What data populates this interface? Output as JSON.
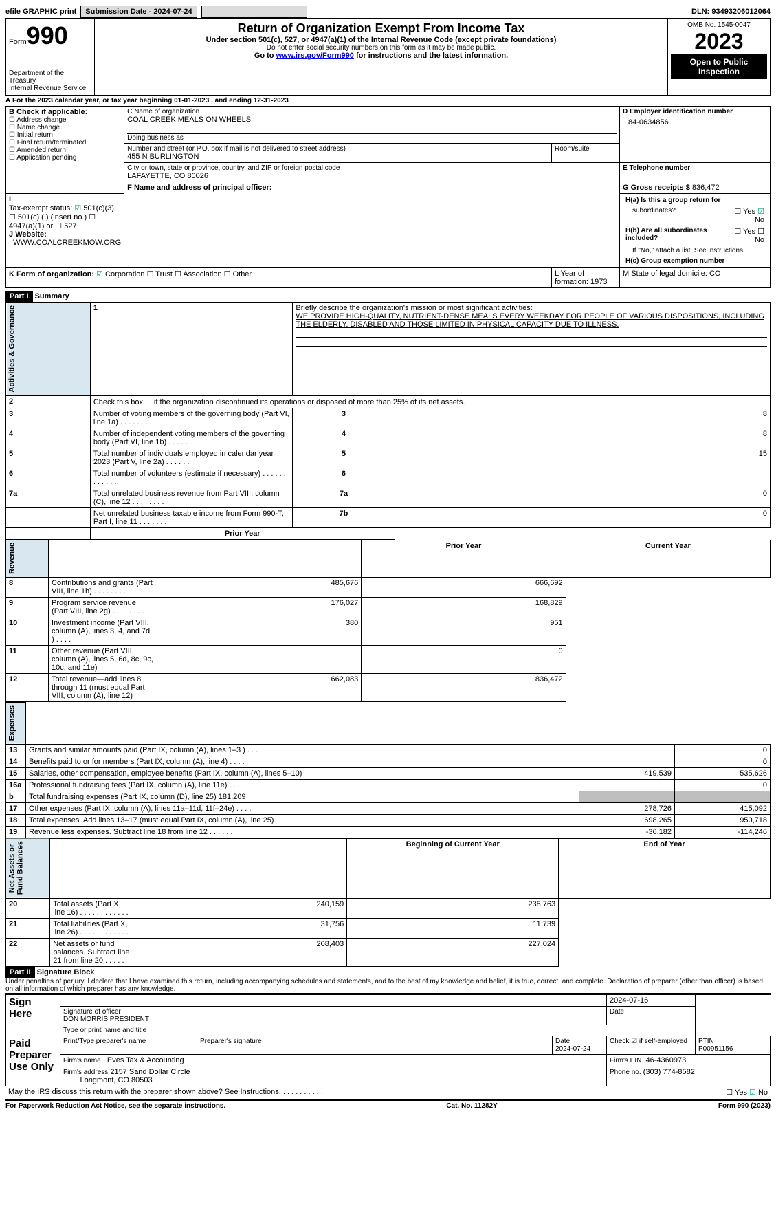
{
  "topbar": {
    "efile": "efile GRAPHIC print",
    "submission": "Submission Date - 2024-07-24",
    "dln": "DLN: 93493206012064"
  },
  "header": {
    "form": "Form",
    "formno": "990",
    "title": "Return of Organization Exempt From Income Tax",
    "subtitle": "Under section 501(c), 527, or 4947(a)(1) of the Internal Revenue Code (except private foundations)",
    "nossn": "Do not enter social security numbers on this form as it may be made public.",
    "goto": "Go to ",
    "gotolink": "www.irs.gov/Form990",
    "goto2": " for instructions and the latest information.",
    "dept": "Department of the Treasury",
    "irs": "Internal Revenue Service",
    "omb": "OMB No. 1545-0047",
    "year": "2023",
    "open": "Open to Public",
    "insp": "Inspection"
  },
  "A": {
    "line": "For the 2023 calendar year, or tax year beginning 01-01-2023    , and ending 12-31-2023"
  },
  "B": {
    "label": "B Check if applicable:",
    "items": [
      "Address change",
      "Name change",
      "Initial return",
      "Final return/terminated",
      "Amended return",
      "Application pending"
    ]
  },
  "C": {
    "name_label": "C Name of organization",
    "name": "COAL CREEK MEALS ON WHEELS",
    "dba_label": "Doing business as",
    "dba": "",
    "addr_label": "Number and street (or P.O. box if mail is not delivered to street address)",
    "room_label": "Room/suite",
    "addr": "455 N BURLINGTON",
    "city_label": "City or town, state or province, country, and ZIP or foreign postal code",
    "city": "LAFAYETTE, CO  80026"
  },
  "D": {
    "label": "D Employer identification number",
    "ein": "84-0634856"
  },
  "E": {
    "label": "E Telephone number",
    "val": ""
  },
  "G": {
    "label": "G Gross receipts $",
    "val": "836,472"
  },
  "F": {
    "label": "F  Name and address of principal officer:",
    "val": ""
  },
  "H": {
    "a": "H(a)  Is this a group return for",
    "a2": "subordinates?",
    "yes": "Yes",
    "no": "No",
    "b": "H(b)  Are all subordinates included?",
    "note": "If \"No,\" attach a list. See instructions.",
    "c": "H(c)  Group exemption number"
  },
  "I": {
    "label": "Tax-exempt status:",
    "opts": [
      "501(c)(3)",
      "501(c) (  ) (insert no.)",
      "4947(a)(1) or",
      "527"
    ]
  },
  "J": {
    "label": "Website:",
    "val": "WWW.COALCREEKMOW.ORG"
  },
  "K": {
    "label": "K Form of organization:",
    "opts": [
      "Corporation",
      "Trust",
      "Association",
      "Other"
    ]
  },
  "L": {
    "label": "L Year of formation: 1973"
  },
  "M": {
    "label": "M State of legal domicile: CO"
  },
  "partI": {
    "part": "Part I",
    "title": "Summary"
  },
  "mission": {
    "num": "1",
    "label": "Briefly describe the organization's mission or most significant activities:",
    "text": "WE PROVIDE HIGH-QUALITY, NUTRIENT-DENSE MEALS EVERY WEEKDAY FOR PEOPLE OF VARIOUS DISPOSITIONS, INCLUDING THE ELDERLY, DISABLED AND THOSE LIMITED IN PHYSICAL CAPACITY DUE TO ILLNESS."
  },
  "govLines": [
    {
      "n": "2",
      "t": "Check this box ☐ if the organization discontinued its operations or disposed of more than 25% of its net assets.",
      "b": "",
      "v": ""
    },
    {
      "n": "3",
      "t": "Number of voting members of the governing body (Part VI, line 1a)   .    .    .    .    .    .    .    .    .",
      "b": "3",
      "v": "8"
    },
    {
      "n": "4",
      "t": "Number of independent voting members of the governing body (Part VI, line 1b)   .    .    .    .    .",
      "b": "4",
      "v": "8"
    },
    {
      "n": "5",
      "t": "Total number of individuals employed in calendar year 2023 (Part V, line 2a)   .    .    .    .    .    .",
      "b": "5",
      "v": "15"
    },
    {
      "n": "6",
      "t": "Total number of volunteers (estimate if necessary)    .    .    .    .    .    .    .    .    .    .    .    .",
      "b": "6",
      "v": ""
    },
    {
      "n": "7a",
      "t": "Total unrelated business revenue from Part VIII, column (C), line 12   .    .    .    .    .    .    .    .",
      "b": "7a",
      "v": "0"
    },
    {
      "n": "",
      "t": "Net unrelated business taxable income from Form 990-T, Part I, line 11   .    .    .    .    .    .    .",
      "b": "7b",
      "v": "0"
    }
  ],
  "col": {
    "py": "Prior Year",
    "cy": "Current Year",
    "beg": "Beginning of Current Year",
    "end": "End of Year"
  },
  "revenue": [
    {
      "n": "8",
      "t": "Contributions and grants (Part VIII, line 1h)   .    .    .    .    .    .    .    .",
      "p": "485,676",
      "c": "666,692"
    },
    {
      "n": "9",
      "t": "Program service revenue (Part VIII, line 2g)   .    .    .    .    .    .    .    .",
      "p": "176,027",
      "c": "168,829"
    },
    {
      "n": "10",
      "t": "Investment income (Part VIII, column (A), lines 3, 4, and 7d )   .    .    .    .",
      "p": "380",
      "c": "951"
    },
    {
      "n": "11",
      "t": "Other revenue (Part VIII, column (A), lines 5, 6d, 8c, 9c, 10c, and 11e)",
      "p": "",
      "c": "0"
    },
    {
      "n": "12",
      "t": "Total revenue—add lines 8 through 11 (must equal Part VIII, column (A), line 12)",
      "p": "662,083",
      "c": "836,472"
    }
  ],
  "expenses": [
    {
      "n": "13",
      "t": "Grants and similar amounts paid (Part IX, column (A), lines 1–3 )  .    .    .",
      "p": "",
      "c": "0"
    },
    {
      "n": "14",
      "t": "Benefits paid to or for members (Part IX, column (A), line 4)   .    .    .    .",
      "p": "",
      "c": "0"
    },
    {
      "n": "15",
      "t": "Salaries, other compensation, employee benefits (Part IX, column (A), lines 5–10)",
      "p": "419,539",
      "c": "535,626"
    },
    {
      "n": "16a",
      "t": "Professional fundraising fees (Part IX, column (A), line 11e)    .    .    .    .",
      "p": "",
      "c": "0"
    },
    {
      "n": "b",
      "t": "Total fundraising expenses (Part IX, column (D), line 25) 181,209",
      "p": "shade",
      "c": "shade"
    },
    {
      "n": "17",
      "t": "Other expenses (Part IX, column (A), lines 11a–11d, 11f–24e)   .    .    .    .",
      "p": "278,726",
      "c": "415,092"
    },
    {
      "n": "18",
      "t": "Total expenses. Add lines 13–17 (must equal Part IX, column (A), line 25)",
      "p": "698,265",
      "c": "950,718"
    },
    {
      "n": "19",
      "t": "Revenue less expenses. Subtract line 18 from line 12   .    .    .    .    .    .",
      "p": "-36,182",
      "c": "-114,246"
    }
  ],
  "netassets": [
    {
      "n": "20",
      "t": "Total assets (Part X, line 16)   .    .    .    .    .    .    .    .    .    .    .    .",
      "p": "240,159",
      "c": "238,763"
    },
    {
      "n": "21",
      "t": "Total liabilities (Part X, line 26)   .    .    .    .    .    .    .    .    .    .    .    .",
      "p": "31,756",
      "c": "11,739"
    },
    {
      "n": "22",
      "t": "Net assets or fund balances. Subtract line 21 from line 20   .    .    .    .    .",
      "p": "208,403",
      "c": "227,024"
    }
  ],
  "sideLabels": {
    "ag": "Activities & Governance",
    "rev": "Revenue",
    "exp": "Expenses",
    "na": "Net Assets or\nFund Balances"
  },
  "partII": {
    "part": "Part II",
    "title": "Signature Block",
    "decl": "Under penalties of perjury, I declare that I have examined this return, including accompanying schedules and statements, and to the best of my knowledge and belief, it is true, correct, and complete. Declaration of preparer (other than officer) is based on all information of which preparer has any knowledge."
  },
  "sign": {
    "sign_here": "Sign Here",
    "sigoff": "Signature of officer",
    "date": "Date",
    "sigdate": "2024-07-16",
    "officer": "DON MORRIS  PRESIDENT",
    "type": "Type or print name and title",
    "paid": "Paid Preparer Use Only",
    "pname_l": "Print/Type preparer's name",
    "psig_l": "Preparer's signature",
    "pdate": "2024-07-24",
    "check": "Check ☑ if self-employed",
    "ptin_l": "PTIN",
    "ptin": "P00951156",
    "firm_l": "Firm's name",
    "firm": "Eves Tax & Accounting",
    "fein_l": "Firm's EIN",
    "fein": "46-4360973",
    "faddr_l": "Firm's address",
    "faddr": "2157 Sand Dollar Circle",
    "fcity": "Longmont, CO  80503",
    "phone_l": "Phone no.",
    "phone": "(303) 774-8582",
    "discuss": "May the IRS discuss this return with the preparer shown above? See Instructions.   .    .    .    .    .    .    .    .    .    .",
    "yes": "Yes",
    "no": "No"
  },
  "footer": {
    "pra": "For Paperwork Reduction Act Notice, see the separate instructions.",
    "cat": "Cat. No. 11282Y",
    "form": "Form 990 (2023)"
  }
}
